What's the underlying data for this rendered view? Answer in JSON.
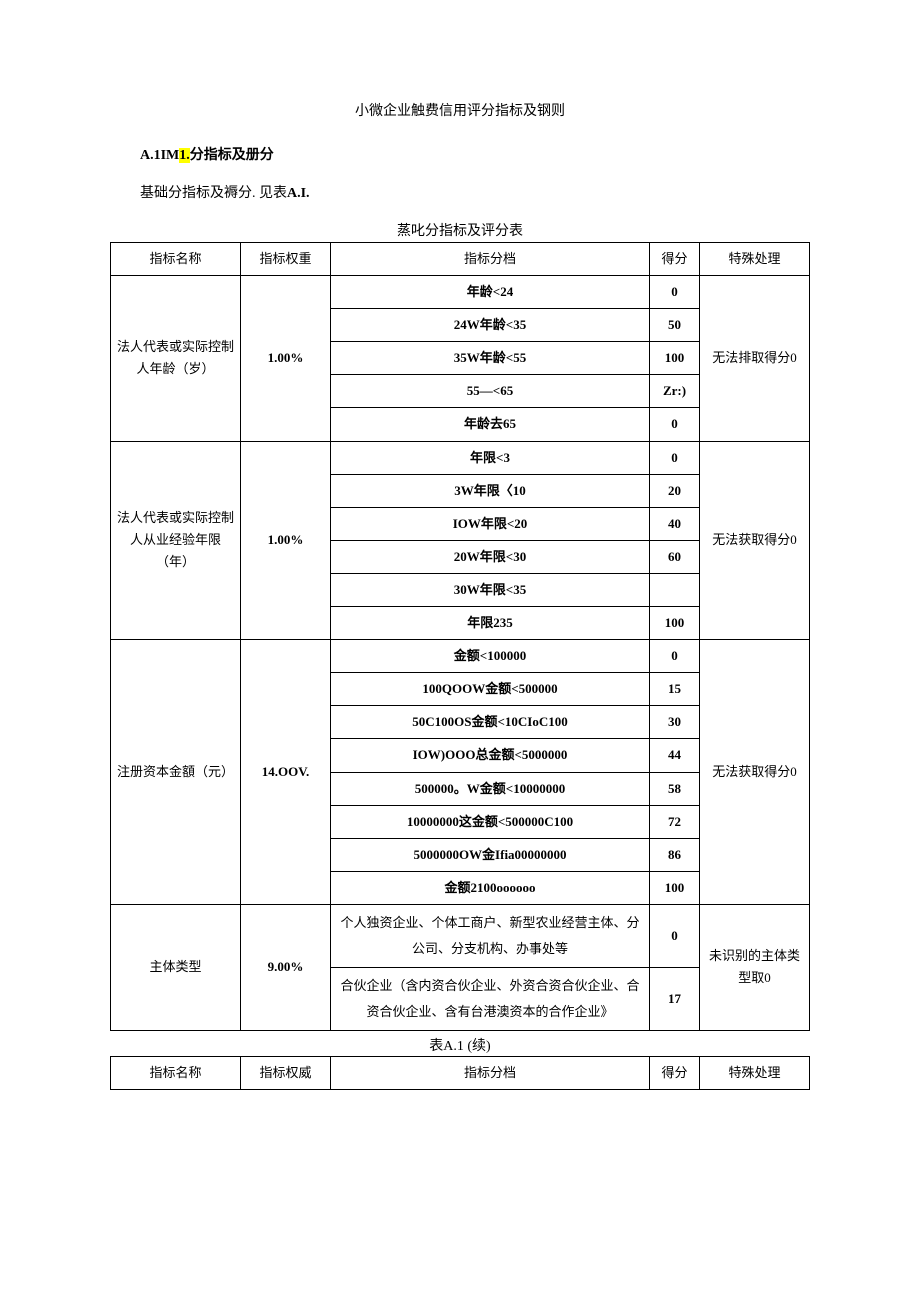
{
  "doc_title": "小微企业触费信用评分指标及钢则",
  "section_label_prefix": "A.1IM",
  "section_label_hl": "1.",
  "section_label_suffix": "分指标及册分",
  "section_para_a": "基础分指标及褥分. 见表",
  "section_para_b": "A.I.",
  "table1_caption": "蒸叱分指标及评分表",
  "headers": {
    "name": "指标名称",
    "weight": "指标权重",
    "tier": "指标分档",
    "score": "得分",
    "special": "特殊处理"
  },
  "headers2": {
    "name": "指标名称",
    "weight": "指标权威",
    "tier": "指标分档",
    "score": "得分",
    "special": "特殊处理"
  },
  "rows": [
    {
      "name": "法人代表或实际控制人年龄（岁）",
      "weight": "1.00%",
      "special": "无法排取得分0",
      "tiers": [
        {
          "label": "年龄<24",
          "score": "0"
        },
        {
          "label": "24W年龄<35",
          "score": "50"
        },
        {
          "label": "35W年龄<55",
          "score": "100"
        },
        {
          "label": "55—<65",
          "score": "Zr:)"
        },
        {
          "label": "年龄去65",
          "score": "0"
        }
      ]
    },
    {
      "name": "法人代表或实际控制人从业经验年限（年）",
      "weight": "1.00%",
      "special": "无法获取得分0",
      "tiers": [
        {
          "label": "年限<3",
          "score": "0"
        },
        {
          "label": "3W年限〈10",
          "score": "20"
        },
        {
          "label": "IOW年限<20",
          "score": "40"
        },
        {
          "label": "20W年限<30",
          "score": "60"
        },
        {
          "label": "30W年限<35",
          "score": ""
        },
        {
          "label": "年限235",
          "score": "100"
        }
      ]
    },
    {
      "name": "注册资本金額（元）",
      "weight": "14.OOV.",
      "special": "无法获取得分0",
      "tiers": [
        {
          "label": "金额<100000",
          "score": "0"
        },
        {
          "label": "100QOOW金额<500000",
          "score": "15"
        },
        {
          "label": "50C100OS金额<10CIoC100",
          "score": "30"
        },
        {
          "label": "IOW)OOO总金额<5000000",
          "score": "44"
        },
        {
          "label": "500000。W金额<10000000",
          "score": "58"
        },
        {
          "label": "10000000这金额<500000C100",
          "score": "72"
        },
        {
          "label": "5000000OW金Ifia00000000",
          "score": "86"
        },
        {
          "label": "金额2100ooooοo",
          "score": "100"
        }
      ]
    },
    {
      "name": "主体类型",
      "weight": "9.00%",
      "special": "未识别的主体类型取0",
      "tiers": [
        {
          "label": "个人独资企业、个体工商户、新型农业经营主体、分公司、分支机构、办事处等",
          "score": "0"
        },
        {
          "label": "合伙企业（含内资合伙企业、外资合资合伙企业、合资合伙企业、含有台港澳资本的合作企业》",
          "score": "17"
        }
      ]
    }
  ],
  "cont_caption": "表A.1 (续)",
  "style": {
    "highlight_bg": "#ffff00",
    "border_color": "#000000",
    "background": "#ffffff",
    "text_color": "#000000",
    "font_family": "SimSun",
    "body_fontsize": 14
  }
}
